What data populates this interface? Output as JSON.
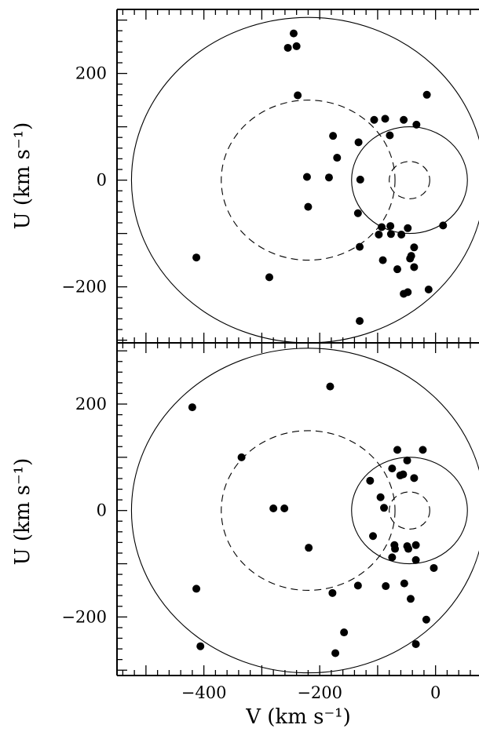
{
  "chart_data": [
    {
      "type": "scatter",
      "panel": "top",
      "xlabel": "",
      "ylabel": "U (km s⁻¹)",
      "xlim": [
        -550,
        75
      ],
      "ylim": [
        -305,
        320
      ],
      "y_ticks": [
        {
          "value": 200,
          "label": "200"
        },
        {
          "value": 0,
          "label": "0"
        },
        {
          "value": -200,
          "label": "−200"
        }
      ],
      "circles": [
        {
          "center": [
            -220,
            0
          ],
          "radius": 305,
          "style": "solid"
        },
        {
          "center": [
            -220,
            0
          ],
          "radius": 150,
          "style": "dashed"
        },
        {
          "center": [
            -45,
            0
          ],
          "radius": 100,
          "style": "solid"
        },
        {
          "center": [
            -45,
            0
          ],
          "radius": 35,
          "style": "dashed"
        }
      ],
      "points": [
        [
          -245,
          275
        ],
        [
          -255,
          248
        ],
        [
          -240,
          251
        ],
        [
          -238,
          159
        ],
        [
          -15,
          160
        ],
        [
          -106,
          113
        ],
        [
          -87,
          115
        ],
        [
          -55,
          113
        ],
        [
          -33,
          104
        ],
        [
          -177,
          83
        ],
        [
          -79,
          84
        ],
        [
          -170,
          42
        ],
        [
          -133,
          71
        ],
        [
          -222,
          6
        ],
        [
          -130,
          1
        ],
        [
          -220,
          -50
        ],
        [
          -184,
          5
        ],
        [
          -134,
          -62
        ],
        [
          -131,
          -125
        ],
        [
          -78,
          -86
        ],
        [
          -93,
          -88
        ],
        [
          -48,
          -90
        ],
        [
          -98,
          -102
        ],
        [
          -59,
          -102
        ],
        [
          -77,
          -101
        ],
        [
          -37,
          -126
        ],
        [
          -42,
          -142
        ],
        [
          -44,
          -147
        ],
        [
          -91,
          -150
        ],
        [
          -66,
          -167
        ],
        [
          -37,
          -163
        ],
        [
          -413,
          -145
        ],
        [
          -287,
          -182
        ],
        [
          -55,
          -213
        ],
        [
          -48,
          -210
        ],
        [
          -12,
          -205
        ],
        [
          13,
          -85
        ],
        [
          -131,
          -264
        ]
      ]
    },
    {
      "type": "scatter",
      "panel": "bottom",
      "xlabel": "V (km s⁻¹)",
      "ylabel": "U (km s⁻¹)",
      "xlim": [
        -550,
        75
      ],
      "ylim": [
        -310,
        315
      ],
      "y_ticks": [
        {
          "value": 200,
          "label": "200"
        },
        {
          "value": 0,
          "label": "0"
        },
        {
          "value": -200,
          "label": "−200"
        }
      ],
      "x_ticks": [
        {
          "value": -400,
          "label": "−400"
        },
        {
          "value": -200,
          "label": "−200"
        },
        {
          "value": 0,
          "label": "0"
        }
      ],
      "circles": [
        {
          "center": [
            -220,
            0
          ],
          "radius": 305,
          "style": "solid"
        },
        {
          "center": [
            -220,
            0
          ],
          "radius": 150,
          "style": "dashed"
        },
        {
          "center": [
            -45,
            0
          ],
          "radius": 100,
          "style": "solid"
        },
        {
          "center": [
            -45,
            0
          ],
          "radius": 35,
          "style": "dashed"
        }
      ],
      "points": [
        [
          -182,
          233
        ],
        [
          -420,
          194
        ],
        [
          -335,
          100
        ],
        [
          -66,
          114
        ],
        [
          -22,
          114
        ],
        [
          -49,
          94
        ],
        [
          -75,
          79
        ],
        [
          -61,
          66
        ],
        [
          -56,
          68
        ],
        [
          -37,
          61
        ],
        [
          -113,
          56
        ],
        [
          -95,
          25
        ],
        [
          -89,
          5
        ],
        [
          -280,
          4
        ],
        [
          -261,
          4
        ],
        [
          -108,
          -48
        ],
        [
          -71,
          -65
        ],
        [
          -70,
          -72
        ],
        [
          -49,
          -67
        ],
        [
          -47,
          -72
        ],
        [
          -34,
          -65
        ],
        [
          -75,
          -88
        ],
        [
          -34,
          -93
        ],
        [
          -219,
          -70
        ],
        [
          -134,
          -141
        ],
        [
          -86,
          -142
        ],
        [
          -54,
          -137
        ],
        [
          -43,
          -166
        ],
        [
          -3,
          -108
        ],
        [
          -178,
          -155
        ],
        [
          -413,
          -147
        ],
        [
          -16,
          -205
        ],
        [
          -158,
          -229
        ],
        [
          -406,
          -255
        ],
        [
          -34,
          -251
        ],
        [
          -173,
          -268
        ]
      ]
    }
  ]
}
